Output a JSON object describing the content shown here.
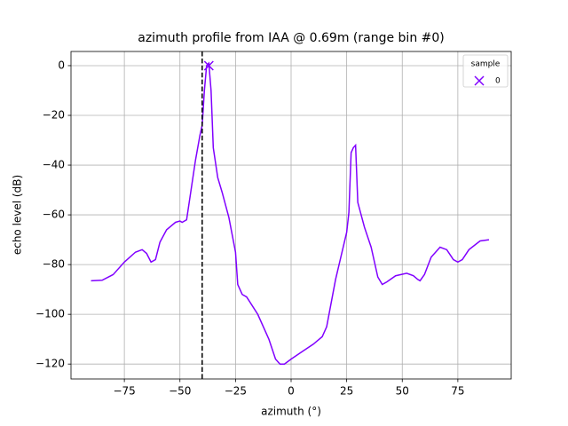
{
  "chart_data": {
    "type": "line",
    "title": "azimuth profile from IAA @ 0.69m (range bin #0)",
    "xlabel": "azimuth (°)",
    "ylabel": "echo level (dB)",
    "xlim": [
      -99,
      99
    ],
    "ylim": [
      -126,
      5.7
    ],
    "xticks": [
      {
        "value": -75,
        "label": "−75"
      },
      {
        "value": -50,
        "label": "−50"
      },
      {
        "value": -25,
        "label": "−25"
      },
      0,
      25,
      50,
      75
    ],
    "yticks": [
      {
        "value": -120,
        "label": "−120"
      },
      {
        "value": -100,
        "label": "−100"
      },
      {
        "value": -80,
        "label": "−80"
      },
      {
        "value": -60,
        "label": "−60"
      },
      {
        "value": -40,
        "label": "−40"
      },
      {
        "value": -20,
        "label": "−20"
      },
      0
    ],
    "grid": true,
    "series": [
      {
        "color": "#8000ff",
        "x": [
          -90,
          -85,
          -80,
          -75,
          -70,
          -67,
          -65,
          -63,
          -61,
          -59,
          -56,
          -52,
          -50,
          -49,
          -47,
          -45,
          -43,
          -41,
          -40,
          -39,
          -38,
          -37,
          -36,
          -35,
          -33,
          -31,
          -28,
          -25,
          -24,
          -22,
          -20,
          -15,
          -10,
          -7,
          -5,
          -3,
          0,
          5,
          10,
          14,
          16,
          20,
          25,
          26,
          27,
          28,
          29,
          30,
          33,
          36,
          39,
          41,
          43,
          47,
          52,
          55,
          57,
          58,
          60,
          63,
          67,
          70,
          73,
          75,
          77,
          80,
          85,
          89
        ],
        "values": [
          -86.5,
          -86.3,
          -84,
          -79,
          -75,
          -74,
          -75.5,
          -79,
          -78,
          -71,
          -66,
          -63,
          -62.5,
          -63,
          -62,
          -50,
          -38,
          -28,
          -24,
          -10,
          0,
          1,
          -10,
          -33,
          -45,
          -51,
          -61,
          -75,
          -88,
          -92,
          -93,
          -100,
          -110,
          -118,
          -120,
          -120,
          -118,
          -115,
          -112,
          -109,
          -105,
          -86,
          -67,
          -59,
          -35,
          -33,
          -32,
          -55,
          -65,
          -73,
          -85,
          -88,
          -87,
          -84.5,
          -83.5,
          -84.5,
          -86,
          -86.5,
          -84,
          -77,
          -73,
          -74,
          -78,
          -79,
          -78,
          -74,
          -70.5,
          -70
        ]
      }
    ],
    "markers": {
      "name": "0",
      "color": "#8000ff",
      "x": [
        -37
      ],
      "values": [
        0
      ]
    },
    "vline": {
      "x": -40,
      "color": "#000000"
    },
    "legend_title": "sample",
    "legend": "upper right"
  }
}
